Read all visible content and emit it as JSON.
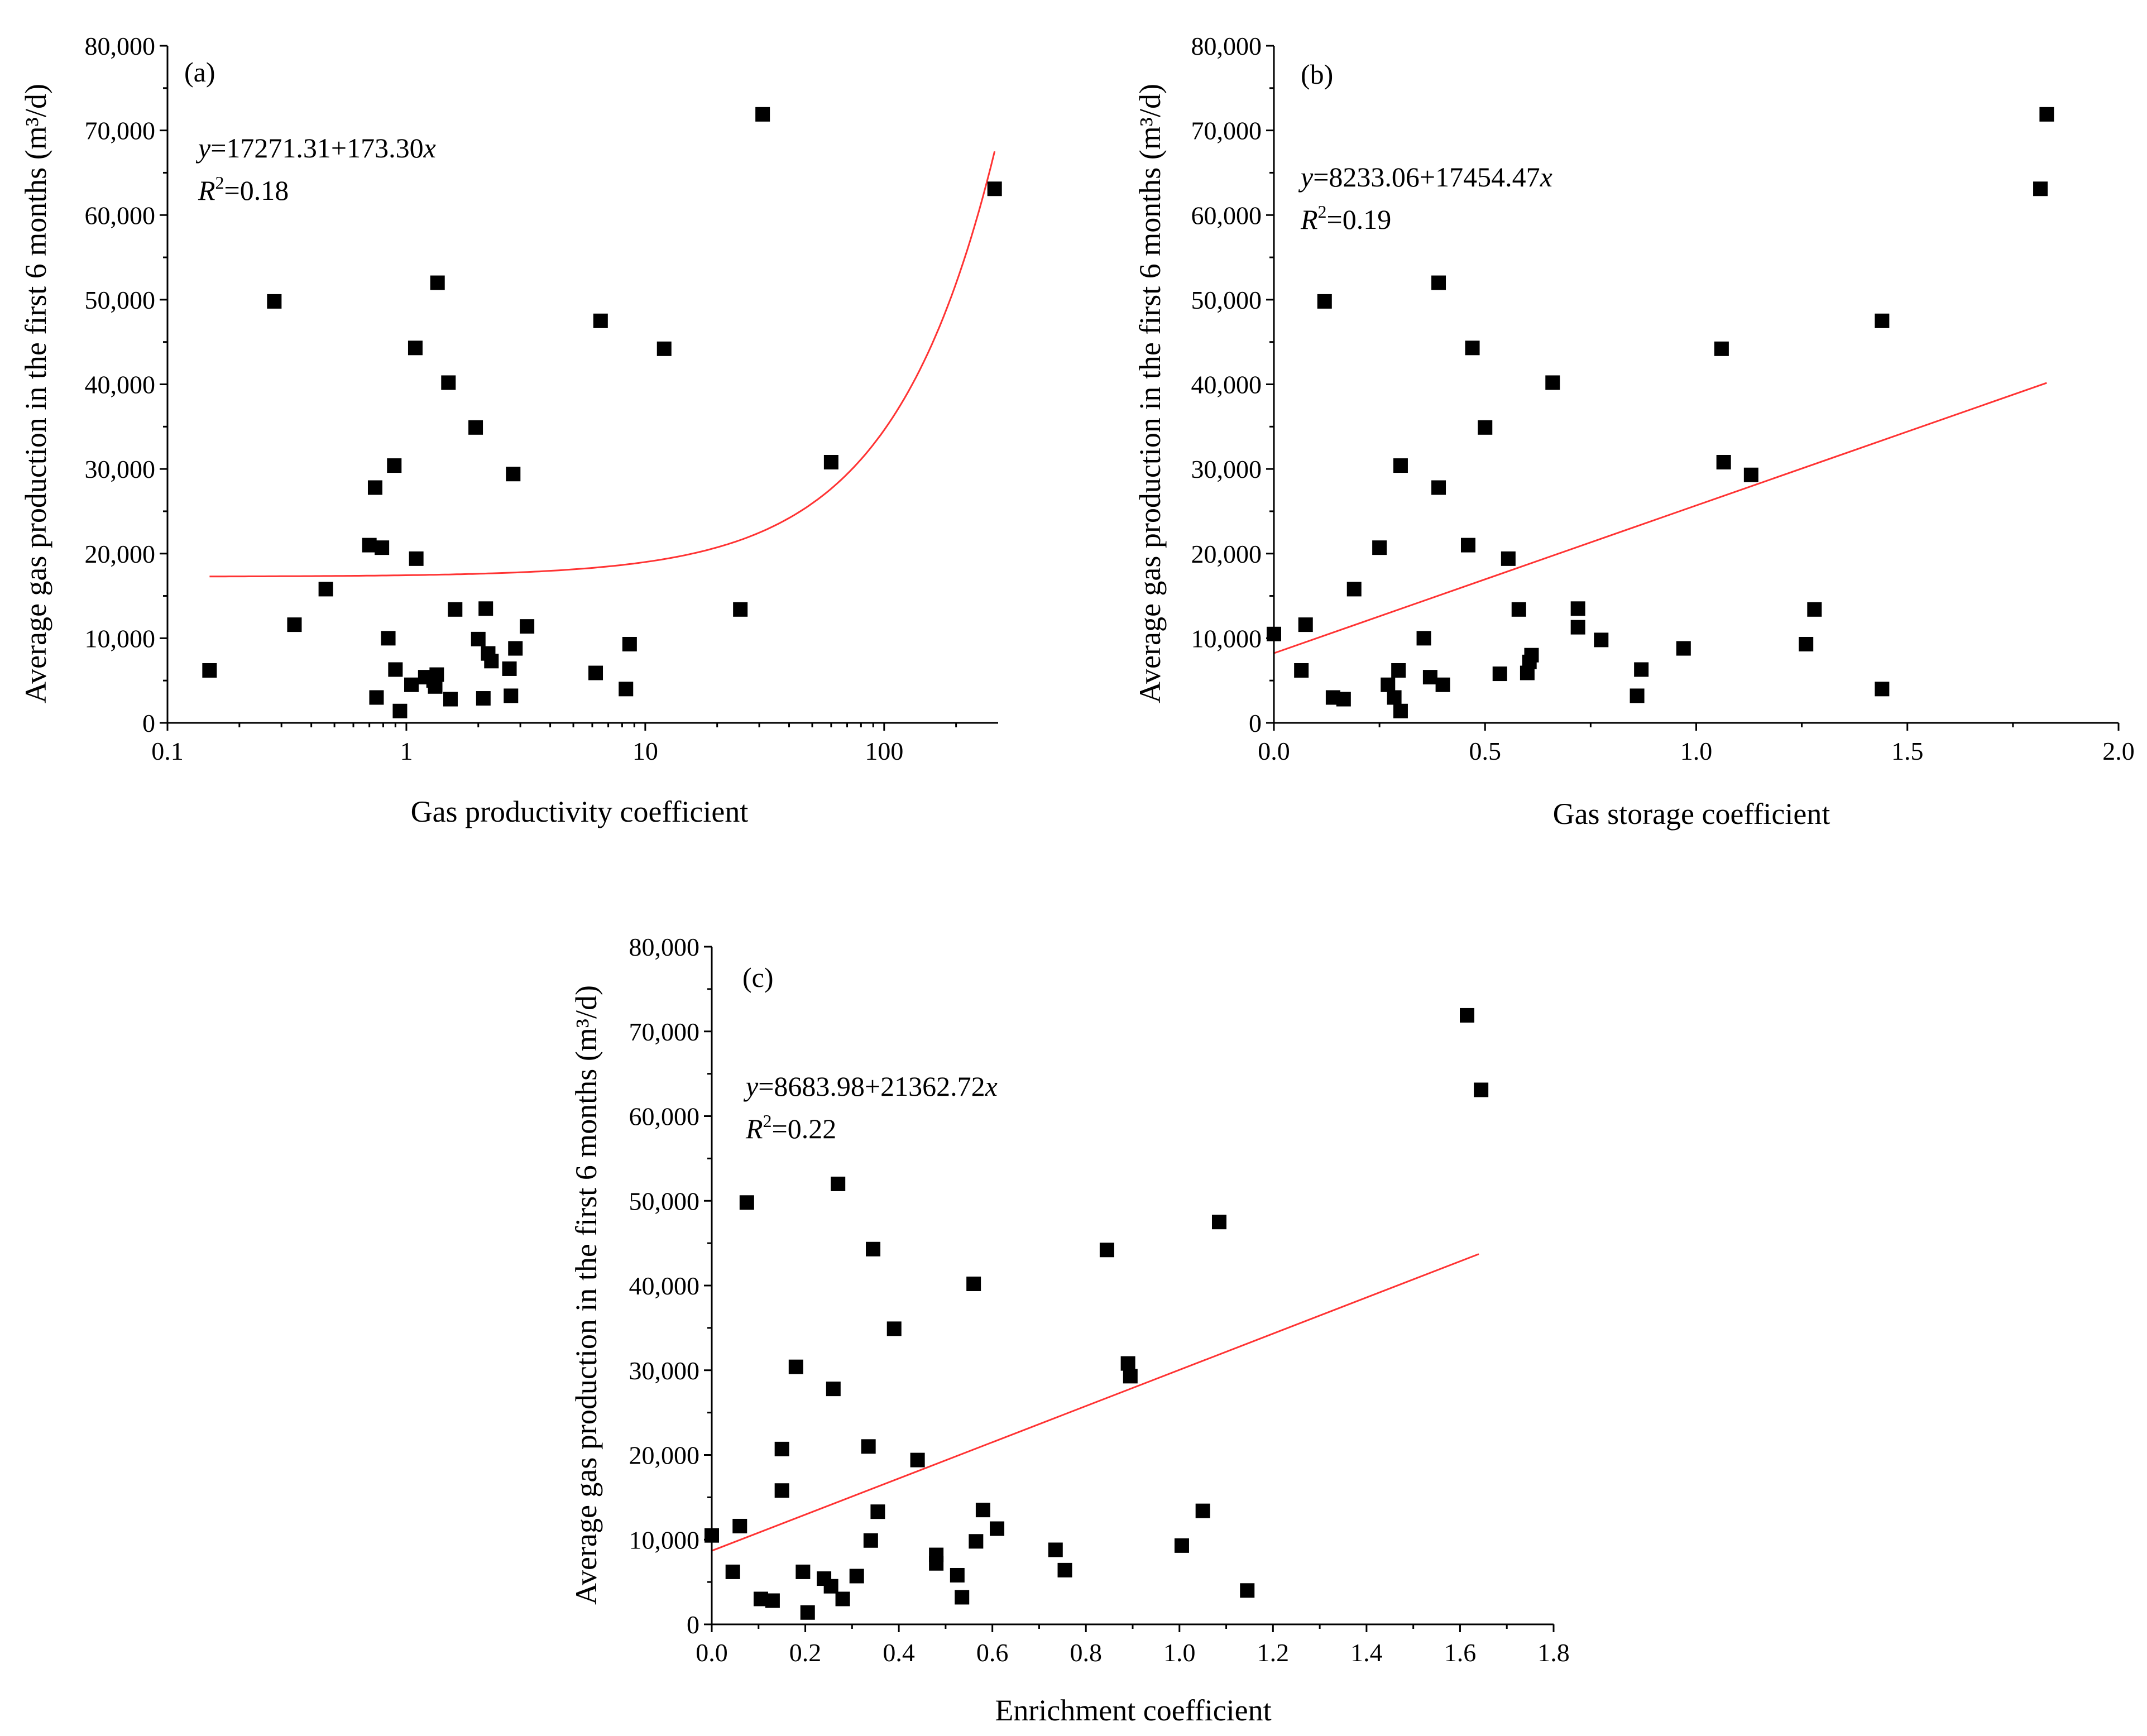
{
  "figure": {
    "colors": {
      "points": "#000000",
      "fit_line": "#ff3333",
      "axes": "#000000"
    }
  },
  "chart_data": [
    {
      "id": "a",
      "type": "scatter",
      "panel_label": "(a)",
      "xscale": "log",
      "xlim": [
        0.1,
        300
      ],
      "ylim": [
        0,
        80000
      ],
      "xticks": [
        0.1,
        1,
        10,
        100
      ],
      "xtick_labels": [
        "0.1",
        "1",
        "10",
        "100"
      ],
      "yticks": [
        0,
        10000,
        20000,
        30000,
        40000,
        50000,
        60000,
        70000,
        80000
      ],
      "ytick_labels": [
        "0",
        "10,000",
        "20,000",
        "30,000",
        "40,000",
        "50,000",
        "60,000",
        "70,000",
        "80,000"
      ],
      "xlabel": "Gas productivity coefficient",
      "ylabel": "Average gas production in the first 6 months (m³/d)",
      "equation": {
        "y_var": "y",
        "body": "=17271.31+173.30",
        "x_var": "x",
        "r_var": "R",
        "r_sup": "2",
        "r_val": "=0.18"
      },
      "fit": {
        "intercept": 17271.31,
        "slope": 173.3,
        "x_range": [
          0.15,
          290
        ]
      },
      "points": [
        [
          0.15,
          6200
        ],
        [
          0.28,
          49800
        ],
        [
          0.34,
          11600
        ],
        [
          0.46,
          15800
        ],
        [
          0.7,
          21000
        ],
        [
          0.74,
          27800
        ],
        [
          0.75,
          3000
        ],
        [
          0.79,
          20700
        ],
        [
          0.84,
          10000
        ],
        [
          0.89,
          30400
        ],
        [
          0.9,
          6300
        ],
        [
          0.94,
          1400
        ],
        [
          1.05,
          4500
        ],
        [
          1.09,
          44300
        ],
        [
          1.1,
          19400
        ],
        [
          1.2,
          5400
        ],
        [
          1.3,
          5000
        ],
        [
          1.32,
          4300
        ],
        [
          1.34,
          5700
        ],
        [
          1.35,
          52000
        ],
        [
          1.5,
          40200
        ],
        [
          1.53,
          2800
        ],
        [
          1.6,
          13400
        ],
        [
          1.95,
          34900
        ],
        [
          2.0,
          9900
        ],
        [
          2.1,
          2900
        ],
        [
          2.15,
          13500
        ],
        [
          2.2,
          8200
        ],
        [
          2.27,
          7300
        ],
        [
          2.7,
          6400
        ],
        [
          2.74,
          3200
        ],
        [
          2.8,
          29400
        ],
        [
          2.86,
          8800
        ],
        [
          3.2,
          11400
        ],
        [
          6.2,
          5900
        ],
        [
          6.5,
          47500
        ],
        [
          8.3,
          4000
        ],
        [
          8.6,
          9300
        ],
        [
          12.0,
          44200
        ],
        [
          25.0,
          13400
        ],
        [
          31.0,
          71900
        ],
        [
          60.0,
          30800
        ],
        [
          290.0,
          63100
        ]
      ]
    },
    {
      "id": "b",
      "type": "scatter",
      "panel_label": "(b)",
      "xscale": "linear",
      "xlim": [
        0,
        2.0
      ],
      "ylim": [
        0,
        80000
      ],
      "xticks": [
        0,
        0.5,
        1.0,
        1.5,
        2.0
      ],
      "xtick_labels": [
        "0.0",
        "0.5",
        "1.0",
        "1.5",
        "2.0"
      ],
      "yticks": [
        0,
        10000,
        20000,
        30000,
        40000,
        50000,
        60000,
        70000,
        80000
      ],
      "ytick_labels": [
        "0",
        "10,000",
        "20,000",
        "30,000",
        "40,000",
        "50,000",
        "60,000",
        "70,000",
        "80,000"
      ],
      "xlabel": "Gas storage coefficient",
      "ylabel": "Average gas production in the first 6 months (m³/d)",
      "equation": {
        "y_var": "y",
        "body": "=8233.06+17454.47",
        "x_var": "x",
        "r_var": "R",
        "r_sup": "2",
        "r_val": "=0.19"
      },
      "fit": {
        "intercept": 8233.06,
        "slope": 17454.47,
        "x_range": [
          0,
          1.83
        ]
      },
      "points": [
        [
          0.0,
          10500
        ],
        [
          0.065,
          6200
        ],
        [
          0.075,
          11600
        ],
        [
          0.12,
          49800
        ],
        [
          0.14,
          3000
        ],
        [
          0.165,
          2800
        ],
        [
          0.19,
          15800
        ],
        [
          0.25,
          20700
        ],
        [
          0.27,
          4500
        ],
        [
          0.285,
          3000
        ],
        [
          0.295,
          6200
        ],
        [
          0.3,
          30400
        ],
        [
          0.3,
          1400
        ],
        [
          0.355,
          10000
        ],
        [
          0.37,
          5400
        ],
        [
          0.39,
          52000
        ],
        [
          0.39,
          27800
        ],
        [
          0.4,
          4500
        ],
        [
          0.46,
          21000
        ],
        [
          0.47,
          44300
        ],
        [
          0.5,
          34900
        ],
        [
          0.535,
          5800
        ],
        [
          0.555,
          19400
        ],
        [
          0.58,
          13400
        ],
        [
          0.6,
          5900
        ],
        [
          0.605,
          7200
        ],
        [
          0.61,
          8000
        ],
        [
          0.66,
          40200
        ],
        [
          0.72,
          13500
        ],
        [
          0.72,
          11300
        ],
        [
          0.775,
          9800
        ],
        [
          0.86,
          3200
        ],
        [
          0.87,
          6300
        ],
        [
          0.97,
          8800
        ],
        [
          1.06,
          44200
        ],
        [
          1.065,
          30800
        ],
        [
          1.13,
          29300
        ],
        [
          1.26,
          9300
        ],
        [
          1.28,
          13400
        ],
        [
          1.44,
          47500
        ],
        [
          1.44,
          4000
        ],
        [
          1.815,
          63100
        ],
        [
          1.83,
          71900
        ]
      ]
    },
    {
      "id": "c",
      "type": "scatter",
      "panel_label": "(c)",
      "xscale": "linear",
      "xlim": [
        0,
        1.8
      ],
      "ylim": [
        0,
        80000
      ],
      "xticks": [
        0,
        0.2,
        0.4,
        0.6,
        0.8,
        1.0,
        1.2,
        1.4,
        1.6,
        1.8
      ],
      "xtick_labels": [
        "0.0",
        "0.2",
        "0.4",
        "0.6",
        "0.8",
        "1.0",
        "1.2",
        "1.4",
        "1.6",
        "1.8"
      ],
      "yticks": [
        0,
        10000,
        20000,
        30000,
        40000,
        50000,
        60000,
        70000,
        80000
      ],
      "ytick_labels": [
        "0",
        "10,000",
        "20,000",
        "30,000",
        "40,000",
        "50,000",
        "60,000",
        "70,000",
        "80,000"
      ],
      "xlabel": "Enrichment coefficient",
      "ylabel": "Average gas production in the first 6 months (m³/d)",
      "equation": {
        "y_var": "y",
        "body": "=8683.98+21362.72",
        "x_var": "x",
        "r_var": "R",
        "r_sup": "2",
        "r_val": "=0.22"
      },
      "fit": {
        "intercept": 8683.98,
        "slope": 21362.72,
        "x_range": [
          0,
          1.64
        ]
      },
      "points": [
        [
          0.0,
          10500
        ],
        [
          0.045,
          6200
        ],
        [
          0.06,
          11600
        ],
        [
          0.075,
          49800
        ],
        [
          0.105,
          3000
        ],
        [
          0.13,
          2800
        ],
        [
          0.15,
          20700
        ],
        [
          0.15,
          15800
        ],
        [
          0.18,
          30400
        ],
        [
          0.195,
          6200
        ],
        [
          0.205,
          1400
        ],
        [
          0.24,
          5400
        ],
        [
          0.255,
          4500
        ],
        [
          0.26,
          27800
        ],
        [
          0.27,
          52000
        ],
        [
          0.28,
          3000
        ],
        [
          0.31,
          5700
        ],
        [
          0.335,
          21000
        ],
        [
          0.34,
          9900
        ],
        [
          0.345,
          44300
        ],
        [
          0.355,
          13300
        ],
        [
          0.39,
          34900
        ],
        [
          0.44,
          19400
        ],
        [
          0.48,
          8200
        ],
        [
          0.48,
          7200
        ],
        [
          0.525,
          5800
        ],
        [
          0.535,
          3200
        ],
        [
          0.56,
          40200
        ],
        [
          0.565,
          9800
        ],
        [
          0.58,
          13500
        ],
        [
          0.61,
          11300
        ],
        [
          0.735,
          8800
        ],
        [
          0.755,
          6400
        ],
        [
          0.845,
          44200
        ],
        [
          0.89,
          30800
        ],
        [
          0.895,
          29300
        ],
        [
          1.005,
          9300
        ],
        [
          1.05,
          13400
        ],
        [
          1.085,
          47500
        ],
        [
          1.145,
          4000
        ],
        [
          1.615,
          71900
        ],
        [
          1.645,
          63100
        ]
      ]
    }
  ]
}
